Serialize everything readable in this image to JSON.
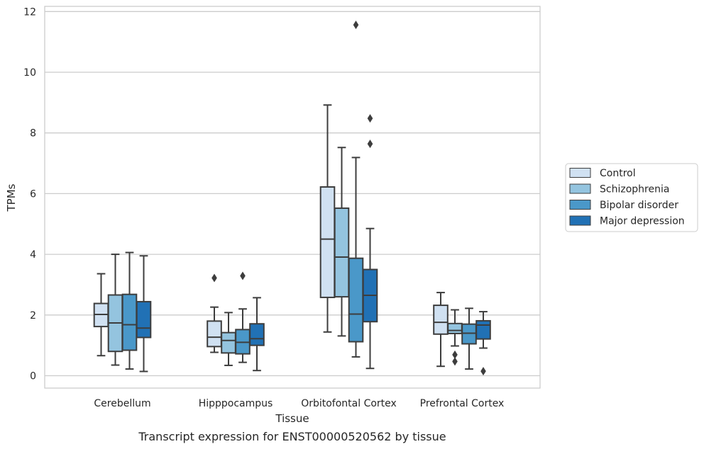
{
  "chart_data": {
    "type": "box",
    "title": "Transcript expression for ENST00000520562 by tissue",
    "xlabel": "Tissue",
    "ylabel": "TPMs",
    "ylim": [
      -0.4,
      12.2
    ],
    "yticks": [
      0,
      2,
      4,
      6,
      8,
      10,
      12
    ],
    "grid": "horizontal",
    "legend_position": "right",
    "categories": [
      "Cerebellum",
      "Hipppocampus",
      "Orbitofontal Cortex",
      "Prefrontal Cortex"
    ],
    "series": [
      {
        "name": "Control",
        "color": "#d0e1f2",
        "boxes": [
          {
            "whislo": 0.66,
            "q1": 1.62,
            "med": 2.02,
            "q3": 2.38,
            "whishi": 3.36,
            "fliers": []
          },
          {
            "whislo": 0.77,
            "q1": 0.96,
            "med": 1.27,
            "q3": 1.8,
            "whishi": 2.26,
            "fliers": [
              3.22
            ]
          },
          {
            "whislo": 1.44,
            "q1": 2.58,
            "med": 4.5,
            "q3": 6.22,
            "whishi": 8.92,
            "fliers": []
          },
          {
            "whislo": 0.31,
            "q1": 1.37,
            "med": 1.76,
            "q3": 2.32,
            "whishi": 2.74,
            "fliers": []
          }
        ]
      },
      {
        "name": "Schizophrenia",
        "color": "#94c4df",
        "boxes": [
          {
            "whislo": 0.35,
            "q1": 0.8,
            "med": 1.74,
            "q3": 2.66,
            "whishi": 4.0,
            "fliers": []
          },
          {
            "whislo": 0.34,
            "q1": 0.75,
            "med": 1.16,
            "q3": 1.42,
            "whishi": 2.08,
            "fliers": []
          },
          {
            "whislo": 1.31,
            "q1": 2.6,
            "med": 3.91,
            "q3": 5.52,
            "whishi": 7.52,
            "fliers": []
          },
          {
            "whislo": 0.98,
            "q1": 1.39,
            "med": 1.49,
            "q3": 1.72,
            "whishi": 2.17,
            "fliers": [
              0.47,
              0.69
            ]
          }
        ]
      },
      {
        "name": "Bipolar disorder",
        "color": "#4a98c9",
        "boxes": [
          {
            "whislo": 0.22,
            "q1": 0.84,
            "med": 1.68,
            "q3": 2.68,
            "whishi": 4.06,
            "fliers": []
          },
          {
            "whislo": 0.44,
            "q1": 0.72,
            "med": 1.1,
            "q3": 1.52,
            "whishi": 2.2,
            "fliers": [
              3.29
            ]
          },
          {
            "whislo": 0.62,
            "q1": 1.12,
            "med": 2.03,
            "q3": 3.87,
            "whishi": 7.19,
            "fliers": [
              11.56
            ]
          },
          {
            "whislo": 0.22,
            "q1": 1.05,
            "med": 1.4,
            "q3": 1.7,
            "whishi": 2.22,
            "fliers": []
          }
        ]
      },
      {
        "name": "Major depression",
        "color": "#2171b5",
        "boxes": [
          {
            "whislo": 0.14,
            "q1": 1.26,
            "med": 1.57,
            "q3": 2.44,
            "whishi": 3.95,
            "fliers": []
          },
          {
            "whislo": 0.17,
            "q1": 1.0,
            "med": 1.22,
            "q3": 1.71,
            "whishi": 2.57,
            "fliers": []
          },
          {
            "whislo": 0.24,
            "q1": 1.78,
            "med": 2.65,
            "q3": 3.5,
            "whishi": 4.85,
            "fliers": [
              7.64,
              8.48
            ]
          },
          {
            "whislo": 0.91,
            "q1": 1.21,
            "med": 1.67,
            "q3": 1.81,
            "whishi": 2.11,
            "fliers": [
              0.15
            ]
          }
        ]
      }
    ]
  }
}
